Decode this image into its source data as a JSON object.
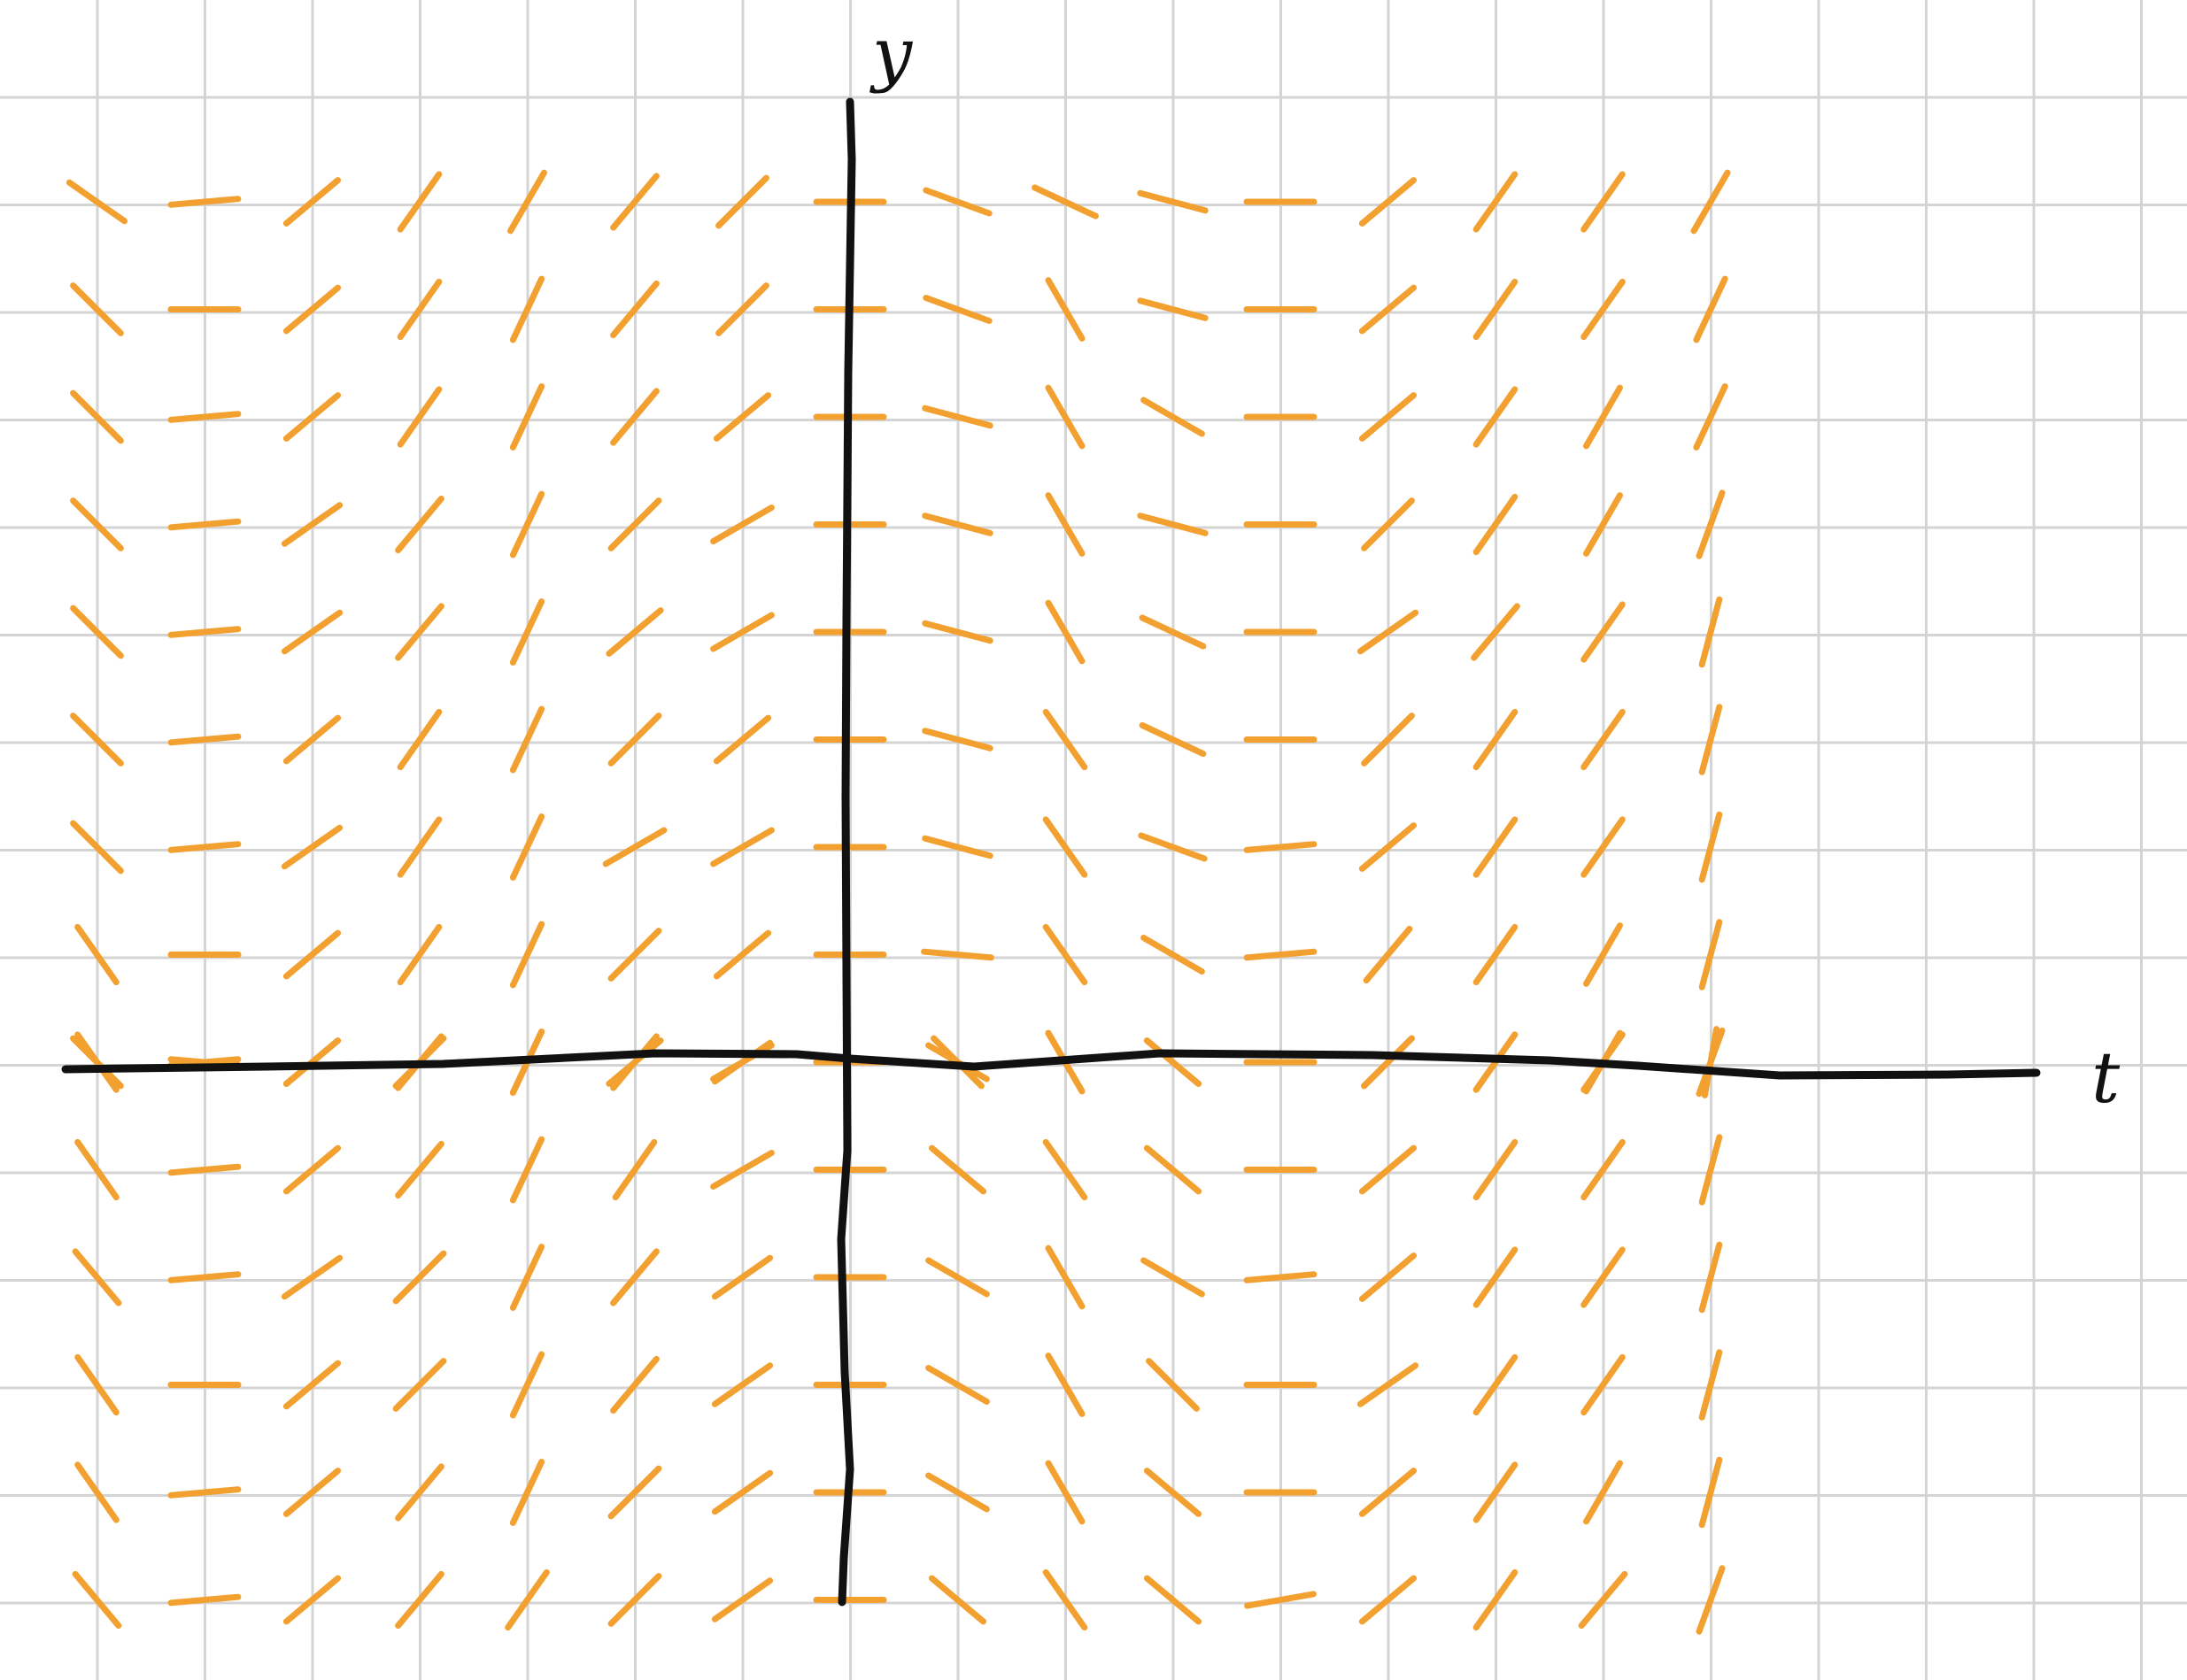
{
  "axes": {
    "x_label": "t",
    "y_label": "y",
    "x_range": [
      -7,
      10
    ],
    "y_range": [
      -5,
      9
    ]
  },
  "colors": {
    "grid": "#d4d4d4",
    "axis": "#111111",
    "slope_field": "#f2a030",
    "background": "#ffffff"
  },
  "slope_field": {
    "t_values": [
      -7,
      -6,
      -5,
      -4,
      -3,
      -2,
      -1,
      0,
      1,
      2,
      3,
      4,
      5,
      6,
      7,
      8
    ],
    "y_values": [
      8,
      7,
      6,
      5,
      4,
      3,
      2,
      1,
      0,
      -1,
      -2,
      -3,
      -4,
      -5
    ],
    "slope_angles_deg": [
      [
        -35,
        5,
        40,
        55,
        60,
        50,
        45,
        0,
        -20,
        -25,
        -15,
        0,
        40,
        55,
        55,
        60
      ],
      [
        -45,
        0,
        40,
        55,
        65,
        50,
        45,
        0,
        -20,
        -60,
        -15,
        0,
        40,
        55,
        55,
        65
      ],
      [
        -45,
        5,
        40,
        55,
        65,
        50,
        40,
        0,
        -15,
        -60,
        -30,
        0,
        40,
        55,
        60,
        65
      ],
      [
        -45,
        5,
        35,
        50,
        65,
        45,
        30,
        0,
        -15,
        -60,
        -15,
        0,
        45,
        55,
        60,
        70
      ],
      [
        -45,
        5,
        35,
        50,
        65,
        40,
        30,
        0,
        -15,
        -60,
        -25,
        0,
        35,
        50,
        55,
        75
      ],
      [
        -45,
        5,
        40,
        55,
        65,
        45,
        40,
        0,
        -15,
        -55,
        -25,
        0,
        45,
        55,
        55,
        75
      ],
      [
        -45,
        5,
        35,
        55,
        65,
        30,
        30,
        0,
        -15,
        -55,
        -20,
        5,
        40,
        55,
        55,
        75
      ],
      [
        -55,
        0,
        40,
        55,
        65,
        45,
        40,
        0,
        -5,
        -55,
        -30,
        5,
        50,
        55,
        60,
        75
      ],
      [
        -45,
        5,
        40,
        50,
        65,
        40,
        35,
        0,
        -30,
        -60,
        -40,
        0,
        45,
        55,
        55,
        80
      ],
      [
        -55,
        5,
        40,
        50,
        65,
        55,
        30,
        0,
        -40,
        -55,
        -40,
        0,
        40,
        55,
        55,
        75
      ],
      [
        -50,
        5,
        35,
        45,
        65,
        50,
        35,
        0,
        -30,
        -60,
        -30,
        5,
        40,
        55,
        55,
        75
      ],
      [
        -55,
        0,
        40,
        45,
        65,
        50,
        35,
        0,
        -30,
        -60,
        -45,
        0,
        35,
        55,
        55,
        75
      ],
      [
        -55,
        5,
        40,
        50,
        65,
        45,
        35,
        0,
        -30,
        -60,
        -40,
        0,
        40,
        55,
        60,
        75
      ],
      [
        -50,
        5,
        40,
        50,
        55,
        45,
        35,
        0,
        -40,
        -55,
        -40,
        10,
        40,
        55,
        50,
        70
      ]
    ],
    "axis_slope_angles_deg": [
      -55,
      -5,
      40,
      45,
      65,
      50,
      30,
      0,
      -45,
      -60,
      -40,
      0,
      45,
      55,
      60,
      70
    ]
  }
}
